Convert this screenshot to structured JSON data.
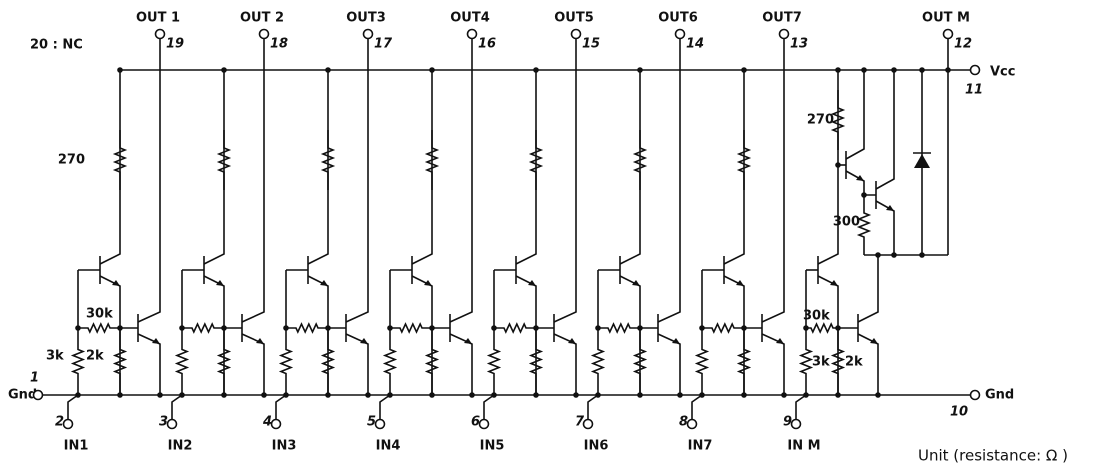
{
  "nc_note": "20 : NC",
  "outputs": [
    {
      "label": "OUT 1",
      "pin": "19"
    },
    {
      "label": "OUT 2",
      "pin": "18"
    },
    {
      "label": "OUT3",
      "pin": "17"
    },
    {
      "label": "OUT4",
      "pin": "16"
    },
    {
      "label": "OUT5",
      "pin": "15"
    },
    {
      "label": "OUT6",
      "pin": "14"
    },
    {
      "label": "OUT7",
      "pin": "13"
    },
    {
      "label": "OUT M",
      "pin": "12"
    }
  ],
  "inputs": [
    {
      "pin": "2",
      "label": "IN1"
    },
    {
      "pin": "3",
      "label": "IN2"
    },
    {
      "pin": "4",
      "label": "IN3"
    },
    {
      "pin": "5",
      "label": "IN4"
    },
    {
      "pin": "6",
      "label": "IN5"
    },
    {
      "pin": "7",
      "label": "IN6"
    },
    {
      "pin": "8",
      "label": "IN7"
    },
    {
      "pin": "9",
      "label": "IN M"
    }
  ],
  "vcc": {
    "label": "Vcc",
    "pin": "11"
  },
  "gnd_left": {
    "label": "Gnd",
    "pin": "1"
  },
  "gnd_right": {
    "label": "Gnd",
    "pin": "10"
  },
  "resistors": {
    "ch1": {
      "r_collector": "270",
      "r_series": "30k",
      "r_input": "3k",
      "r_emitter": "2k"
    },
    "chM": {
      "r_collector": "270",
      "r_darlington": "300",
      "r_series": "30k",
      "r_input": "3k",
      "r_emitter": "2k"
    }
  },
  "unit_note": "Unit (resistance: Ω )"
}
